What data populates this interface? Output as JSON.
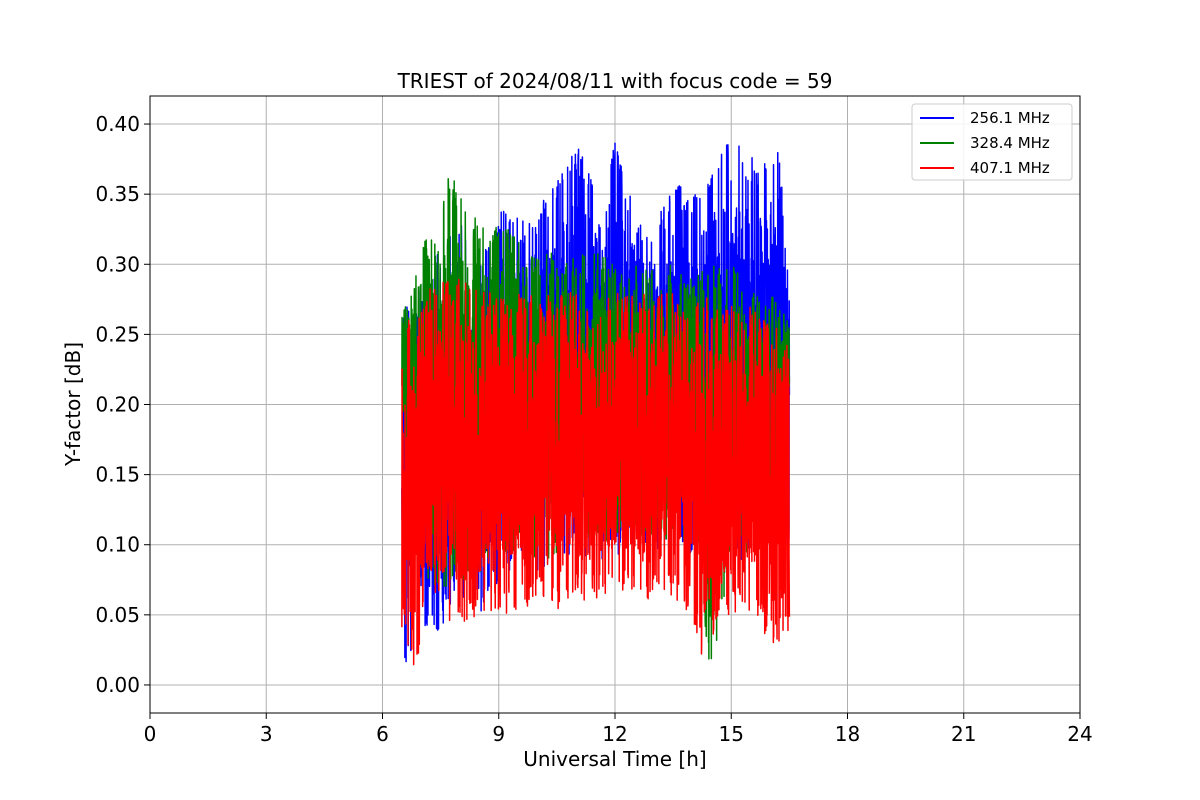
{
  "chart_data": {
    "type": "line",
    "title": "TRIEST of 2024/08/11 with focus code = 59",
    "xlabel": "Universal Time [h]",
    "ylabel": "Y-factor [dB]",
    "xlim": [
      0,
      24
    ],
    "ylim": [
      -0.02,
      0.42
    ],
    "xticks": [
      0,
      3,
      6,
      9,
      12,
      15,
      18,
      21,
      24
    ],
    "xtick_labels": [
      "0",
      "3",
      "6",
      "9",
      "12",
      "15",
      "18",
      "21",
      "24"
    ],
    "yticks": [
      0.0,
      0.05,
      0.1,
      0.15,
      0.2,
      0.25,
      0.3,
      0.35,
      0.4
    ],
    "ytick_labels": [
      "0.00",
      "0.05",
      "0.10",
      "0.15",
      "0.20",
      "0.25",
      "0.30",
      "0.35",
      "0.40"
    ],
    "grid": true,
    "legend_position": "top-right",
    "x_range_of_data": [
      6.5,
      16.5
    ],
    "series": [
      {
        "name": "256.1 MHz",
        "color": "#0000ff",
        "x": [
          6.5,
          6.6,
          6.9,
          7.3,
          7.9,
          8.5,
          9.1,
          9.7,
          10.2,
          10.8,
          10.95,
          11.5,
          12.0,
          12.4,
          12.8,
          13.2,
          13.6,
          14.0,
          14.4,
          14.8,
          14.95,
          15.4,
          15.8,
          16.2,
          16.5
        ],
        "min": [
          0.02,
          0.0,
          0.04,
          0.03,
          0.06,
          0.05,
          0.07,
          0.08,
          0.08,
          0.08,
          0.09,
          0.09,
          0.09,
          0.1,
          0.1,
          0.09,
          0.1,
          0.09,
          0.09,
          0.09,
          0.09,
          0.08,
          0.09,
          0.1,
          0.1
        ],
        "max": [
          0.26,
          0.27,
          0.28,
          0.3,
          0.34,
          0.3,
          0.34,
          0.33,
          0.35,
          0.37,
          0.39,
          0.36,
          0.39,
          0.35,
          0.33,
          0.34,
          0.36,
          0.35,
          0.37,
          0.38,
          0.4,
          0.38,
          0.37,
          0.39,
          0.29
        ]
      },
      {
        "name": "328.4 MHz",
        "color": "#008000",
        "x": [
          6.5,
          6.7,
          7.0,
          7.4,
          7.7,
          8.0,
          8.5,
          9.0,
          9.5,
          10.0,
          10.5,
          11.0,
          11.5,
          12.0,
          12.5,
          13.0,
          13.5,
          14.0,
          14.5,
          15.0,
          15.5,
          16.0,
          16.5
        ],
        "min": [
          0.2,
          0.1,
          0.08,
          0.07,
          0.07,
          0.07,
          0.08,
          0.09,
          0.09,
          0.09,
          0.09,
          0.1,
          0.1,
          0.1,
          0.11,
          0.1,
          0.1,
          0.1,
          0.0,
          0.1,
          0.09,
          0.1,
          0.2
        ],
        "max": [
          0.27,
          0.29,
          0.32,
          0.32,
          0.37,
          0.35,
          0.33,
          0.33,
          0.32,
          0.31,
          0.31,
          0.31,
          0.31,
          0.3,
          0.3,
          0.3,
          0.3,
          0.29,
          0.3,
          0.3,
          0.29,
          0.28,
          0.26
        ]
      },
      {
        "name": "407.1 MHz",
        "color": "#ff0000",
        "x": [
          6.5,
          6.8,
          7.1,
          7.5,
          8.0,
          8.5,
          9.0,
          9.5,
          10.0,
          10.5,
          11.0,
          11.5,
          12.0,
          12.5,
          13.0,
          13.5,
          14.0,
          14.3,
          14.6,
          15.0,
          15.5,
          16.0,
          16.5
        ],
        "min": [
          0.04,
          0.0,
          0.05,
          0.05,
          0.04,
          0.05,
          0.05,
          0.05,
          0.06,
          0.05,
          0.06,
          0.06,
          0.07,
          0.06,
          0.06,
          0.06,
          0.05,
          0.01,
          0.04,
          0.05,
          0.05,
          0.03,
          0.03
        ],
        "max": [
          0.26,
          0.26,
          0.28,
          0.29,
          0.29,
          0.28,
          0.28,
          0.28,
          0.28,
          0.28,
          0.28,
          0.27,
          0.28,
          0.28,
          0.28,
          0.28,
          0.27,
          0.28,
          0.27,
          0.27,
          0.27,
          0.26,
          0.25
        ]
      }
    ]
  }
}
